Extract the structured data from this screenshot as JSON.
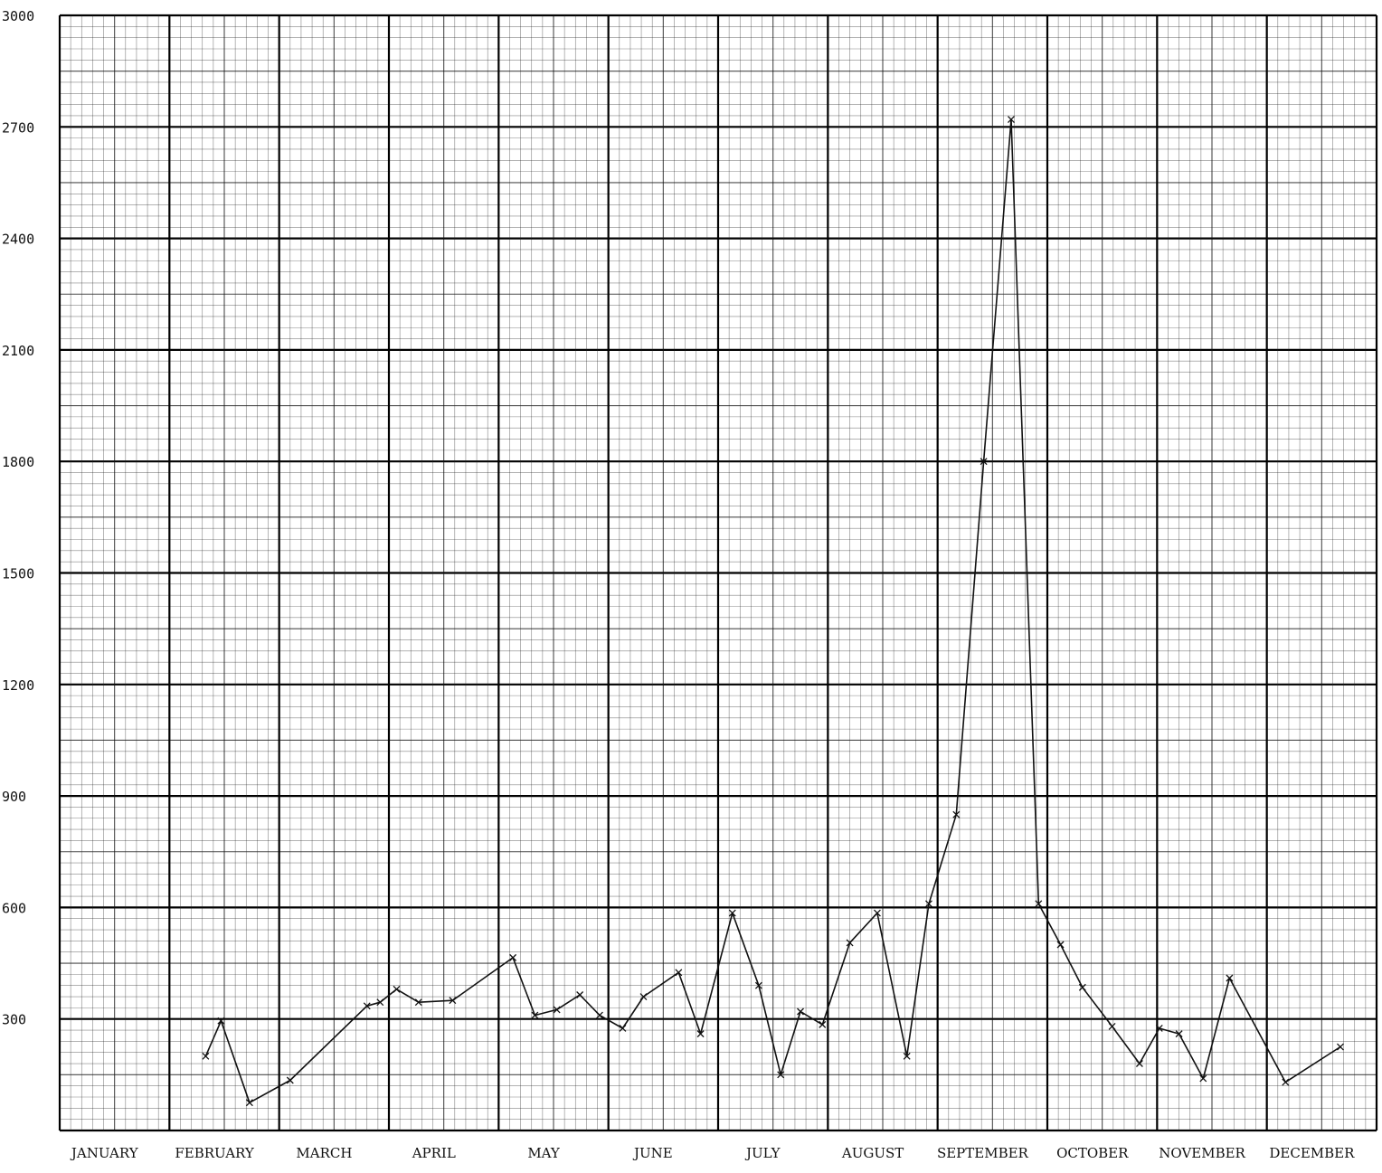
{
  "chart_data": {
    "type": "line",
    "title": "",
    "xlabel": "",
    "ylabel": "",
    "ylim": [
      0,
      3000
    ],
    "yticks": [
      "300",
      "600",
      "900",
      "1200",
      "1500",
      "1800",
      "2100",
      "2400",
      "2700",
      "3000"
    ],
    "xlim": [
      0,
      12
    ],
    "categories": [
      "JANUARY",
      "FEBRUARY",
      "MARCH",
      "APRIL",
      "MAY",
      "JUNE",
      "JULY",
      "AUGUST",
      "SEPTEMBER",
      "OCTOBER",
      "NOVEMBER",
      "DECEMBER"
    ],
    "grid": true,
    "legend": "none",
    "series": [
      {
        "x": [
          1.33,
          1.47,
          1.73,
          2.1,
          2.8,
          2.92,
          3.07,
          3.27,
          3.58,
          4.13,
          4.33,
          4.53,
          4.74,
          4.92,
          5.13,
          5.32,
          5.64,
          5.84,
          6.13,
          6.37,
          6.57,
          6.75,
          6.95,
          7.2,
          7.45,
          7.72,
          7.92,
          8.17,
          8.42,
          8.67,
          8.92,
          9.12,
          9.32,
          9.59,
          9.84,
          10.02,
          10.2,
          10.42,
          10.66,
          11.17,
          11.67
        ],
        "y": [
          200,
          295,
          75,
          135,
          335,
          345,
          380,
          345,
          350,
          465,
          310,
          325,
          365,
          310,
          275,
          360,
          425,
          260,
          585,
          390,
          150,
          320,
          285,
          505,
          585,
          200,
          610,
          850,
          1800,
          2720,
          610,
          500,
          385,
          280,
          180,
          275,
          260,
          140,
          410,
          130,
          225
        ]
      }
    ]
  }
}
